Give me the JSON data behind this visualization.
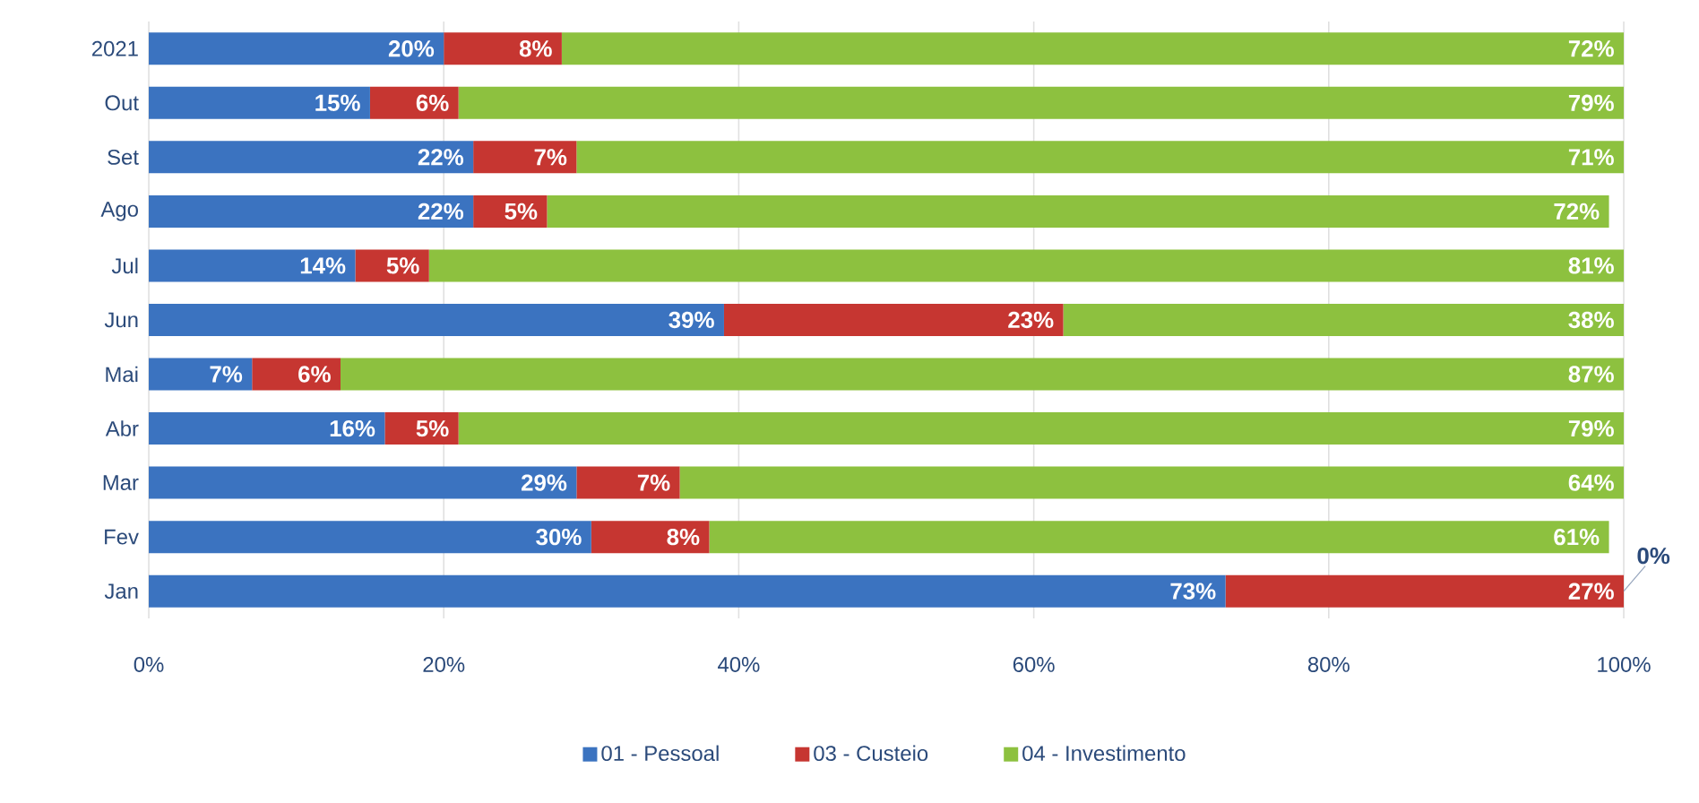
{
  "chart_data": {
    "type": "bar",
    "orientation": "horizontal",
    "stacked": true,
    "categories": [
      "2021",
      "Out",
      "Set",
      "Ago",
      "Jul",
      "Jun",
      "Mai",
      "Abr",
      "Mar",
      "Fev",
      "Jan"
    ],
    "series": [
      {
        "name": "01 - Pessoal",
        "color": "#3b73c0",
        "values": [
          20,
          15,
          22,
          22,
          14,
          39,
          7,
          16,
          29,
          30,
          73
        ],
        "value_labels": [
          "20%",
          "15%",
          "22%",
          "22%",
          "14%",
          "39%",
          "7%",
          "16%",
          "29%",
          "30%",
          "73%"
        ]
      },
      {
        "name": "03 - Custeio",
        "color": "#c63631",
        "values": [
          8,
          6,
          7,
          5,
          5,
          23,
          6,
          5,
          7,
          8,
          27
        ],
        "value_labels": [
          "8%",
          "6%",
          "7%",
          "5%",
          "5%",
          "23%",
          "6%",
          "5%",
          "7%",
          "8%",
          "27%"
        ]
      },
      {
        "name": "04 - Investimento",
        "color": "#8dc13f",
        "values": [
          72,
          79,
          71,
          72,
          81,
          38,
          87,
          79,
          64,
          61,
          0
        ],
        "value_labels": [
          "72%",
          "79%",
          "71%",
          "72%",
          "81%",
          "38%",
          "87%",
          "79%",
          "64%",
          "61%",
          "0%"
        ]
      }
    ],
    "xlim": [
      0,
      100
    ],
    "xticks": [
      {
        "value": 0,
        "label": "0%"
      },
      {
        "value": 20,
        "label": "20%"
      },
      {
        "value": 40,
        "label": "40%"
      },
      {
        "value": 60,
        "label": "60%"
      },
      {
        "value": 80,
        "label": "80%"
      },
      {
        "value": 100,
        "label": "100%"
      }
    ],
    "grid": "x",
    "legend": "bottom"
  }
}
